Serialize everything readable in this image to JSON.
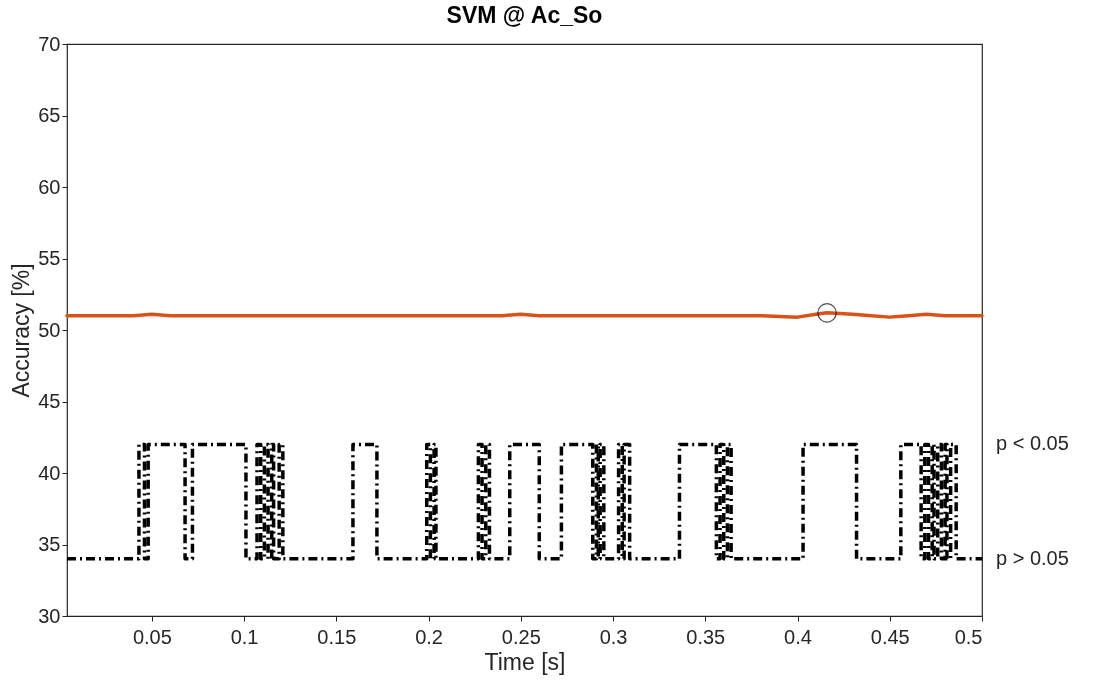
{
  "chart_data": {
    "type": "line",
    "title": "SVM @ Ac_So",
    "xlabel": "Time [s]",
    "ylabel": "Accuracy [%]",
    "xlim": [
      0.004,
      0.5
    ],
    "xticks": [
      0.05,
      0.1,
      0.15,
      0.2,
      0.25,
      0.3,
      0.35,
      0.4,
      0.45,
      0.5
    ],
    "ylim": [
      30,
      70
    ],
    "yticks": [
      30,
      35,
      40,
      45,
      50,
      55,
      60,
      65,
      70
    ],
    "annotations": [
      "p < 0.05",
      "p > 0.05"
    ],
    "grid": false,
    "series": [
      {
        "color": "#d95319",
        "line_style": "solid",
        "marker": "none",
        "x": [
          0.004,
          0.02,
          0.04,
          0.05,
          0.06,
          0.08,
          0.1,
          0.12,
          0.14,
          0.16,
          0.18,
          0.2,
          0.22,
          0.24,
          0.25,
          0.26,
          0.28,
          0.3,
          0.32,
          0.34,
          0.36,
          0.38,
          0.4,
          0.41,
          0.416,
          0.43,
          0.44,
          0.45,
          0.46,
          0.47,
          0.48,
          0.49,
          0.5
        ],
        "values": [
          51.0,
          51.0,
          51.0,
          51.1,
          51.0,
          51.0,
          51.0,
          51.0,
          51.0,
          51.0,
          51.0,
          51.0,
          51.0,
          51.0,
          51.1,
          51.0,
          51.0,
          51.0,
          51.0,
          51.0,
          51.0,
          51.0,
          50.9,
          51.1,
          51.2,
          51.1,
          51.0,
          50.9,
          51.0,
          51.1,
          51.0,
          51.0,
          51.0
        ]
      },
      {
        "type": "scatter",
        "color": "#000000",
        "marker": "circle",
        "x": [
          0.416
        ],
        "values": [
          51.2
        ]
      },
      {
        "type": "step",
        "color": "#000000",
        "line_style": "dashdot",
        "marker": "none",
        "x": [
          0.004,
          0.043,
          0.046,
          0.048,
          0.068,
          0.072,
          0.101,
          0.107,
          0.109,
          0.111,
          0.113,
          0.115,
          0.116,
          0.119,
          0.121,
          0.159,
          0.172,
          0.199,
          0.201,
          0.203,
          0.204,
          0.227,
          0.229,
          0.231,
          0.233,
          0.244,
          0.26,
          0.272,
          0.289,
          0.291,
          0.292,
          0.293,
          0.295,
          0.303,
          0.305,
          0.306,
          0.309,
          0.336,
          0.356,
          0.358,
          0.36,
          0.362,
          0.364,
          0.403,
          0.432,
          0.456,
          0.467,
          0.469,
          0.471,
          0.473,
          0.474,
          0.476,
          0.478,
          0.48,
          0.481,
          0.483,
          0.486,
          0.5
        ],
        "values": [
          34,
          42,
          34,
          42,
          34,
          42,
          34,
          42,
          34,
          42,
          34,
          42,
          34,
          42,
          34,
          42,
          34,
          42,
          34,
          42,
          34,
          42,
          34,
          42,
          34,
          42,
          34,
          42,
          34,
          42,
          34,
          42,
          34,
          42,
          34,
          42,
          34,
          42,
          34,
          42,
          34,
          42,
          34,
          42,
          34,
          42,
          34,
          42,
          34,
          42,
          34,
          42,
          34,
          42,
          34,
          42,
          34,
          34
        ]
      }
    ]
  }
}
